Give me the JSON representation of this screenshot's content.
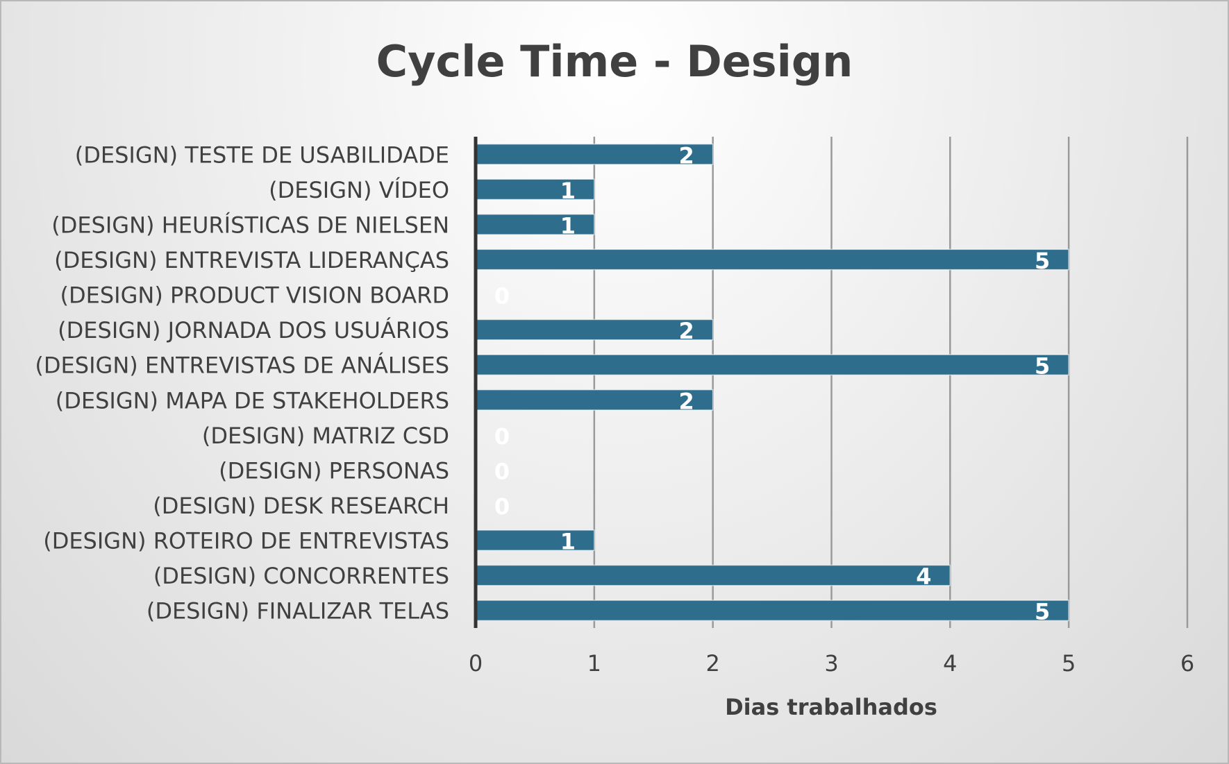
{
  "chart_data": {
    "type": "bar",
    "orientation": "horizontal",
    "title": "Cycle Time - Design",
    "xlabel": "Dias trabalhados",
    "ylabel": "",
    "xlim": [
      0,
      6
    ],
    "x_ticks": [
      0,
      1,
      2,
      3,
      4,
      5,
      6
    ],
    "grid": true,
    "legend": "none",
    "bar_color": "#2f6d8c",
    "categories": [
      "(DESIGN) TESTE DE USABILIDADE",
      "(DESIGN) VÍDEO",
      "(DESIGN) HEURÍSTICAS DE NIELSEN",
      "(DESIGN) ENTREVISTA LIDERANÇAS",
      "(DESIGN) PRODUCT VISION BOARD",
      "(DESIGN) JORNADA DOS USUÁRIOS",
      "(DESIGN) ENTREVISTAS DE ANÁLISES",
      "(DESIGN) MAPA DE STAKEHOLDERS",
      "(DESIGN) MATRIZ CSD",
      "(DESIGN) PERSONAS",
      "(DESIGN) DESK RESEARCH",
      "(DESIGN) ROTEIRO DE ENTREVISTAS",
      "(DESIGN) CONCORRENTES",
      "(DESIGN) FINALIZAR TELAS"
    ],
    "values": [
      2,
      1,
      1,
      5,
      0,
      2,
      5,
      2,
      0,
      0,
      0,
      1,
      4,
      5
    ]
  }
}
